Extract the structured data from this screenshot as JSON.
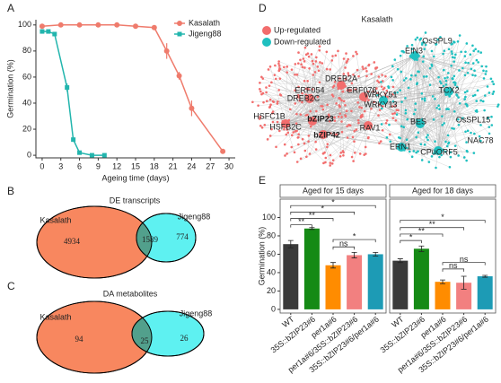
{
  "chart_data": [
    {
      "type": "line",
      "panel": "A",
      "xlabel": "Ageing time (days)",
      "ylabel": "Germination (%)",
      "xlim": [
        -1,
        31
      ],
      "xticks": [
        0,
        3,
        6,
        9,
        12,
        15,
        18,
        21,
        24,
        27,
        30
      ],
      "ylim": [
        -2,
        104
      ],
      "yticks": [
        0,
        20,
        40,
        60,
        80,
        100
      ],
      "legend": "top-right",
      "series": [
        {
          "name": "Kasalath",
          "color": "#ef7b6c",
          "marker": "circle",
          "x": [
            0,
            3,
            6,
            9,
            12,
            15,
            18,
            20,
            22,
            24,
            29
          ],
          "values": [
            99,
            100,
            100,
            100,
            100,
            99,
            98,
            80,
            61,
            36,
            3
          ],
          "errors": [
            null,
            null,
            null,
            null,
            null,
            null,
            null,
            6,
            3,
            6,
            null
          ]
        },
        {
          "name": "Jigeng88",
          "color": "#22b5ad",
          "marker": "square",
          "x": [
            0,
            1,
            2,
            4,
            5,
            6,
            8,
            10
          ],
          "values": [
            95,
            95,
            93,
            52,
            12,
            2,
            0,
            0
          ],
          "errors": [
            null,
            null,
            null,
            3,
            null,
            null,
            null,
            null
          ]
        }
      ]
    },
    {
      "type": "venn",
      "panel": "B",
      "title": "DE transcripts",
      "sets": [
        {
          "name": "Kasalath",
          "only": 4934,
          "color": "#f8875f"
        },
        {
          "name": "Jigeng88",
          "only": 774,
          "color": "#5ef1f1"
        }
      ],
      "overlap": 1589,
      "overlap_color": "#52a08c"
    },
    {
      "type": "venn",
      "panel": "C",
      "title": "DA metabolites",
      "sets": [
        {
          "name": "Kasalath",
          "only": 94,
          "color": "#f8875f"
        },
        {
          "name": "Jigeng88",
          "only": 26,
          "color": "#5ef1f1"
        }
      ],
      "overlap": 25,
      "overlap_color": "#52a08c"
    },
    {
      "type": "bar",
      "panel": "E",
      "ylabel": "Germination (%)",
      "ylim": [
        -4,
        120
      ],
      "yticks": [
        0,
        20,
        40,
        60,
        80,
        100
      ],
      "categories": [
        "WT",
        "35S::bZIP23#6",
        "per1a#6",
        "per1a#6/35S::bZIP23#6",
        "35S::bZIP23#6/per1a#6"
      ],
      "colors": [
        "#3a3a3a",
        "#158a15",
        "#ff8c00",
        "#f28080",
        "#1d9bb5"
      ],
      "facets": [
        {
          "title": "Aged for 15 days",
          "values": [
            71,
            88,
            48,
            59,
            60
          ],
          "errors": [
            4,
            1,
            3,
            3,
            2
          ],
          "significance": [
            "**",
            "**",
            "*",
            "*",
            "ns",
            "*"
          ]
        },
        {
          "title": "Aged for 18 days",
          "values": [
            53,
            66,
            30,
            29,
            36
          ],
          "errors": [
            2,
            3,
            2,
            7,
            1
          ],
          "significance": [
            "*",
            "**",
            "**",
            "*",
            "ns",
            "ns"
          ]
        }
      ]
    }
  ],
  "network": {
    "panel": "D",
    "title": "Kasalath",
    "legend": [
      {
        "name": "Up-regulated",
        "color": "#f26d6d"
      },
      {
        "name": "Down-regulated",
        "color": "#1fc0c0"
      }
    ],
    "up_nodes": [
      "DREB2A",
      "ERF054",
      "ERF076",
      "DREB2C",
      "HSFC1B",
      "bZIP23",
      "HSFB2C",
      "bZIP42",
      "RAV1"
    ],
    "down_nodes": [
      "OsSPL9",
      "EIN3",
      "WRKY51",
      "WRKY13",
      "TCX2",
      "BES",
      "OsSPL15",
      "ERN1",
      "CPuORF5",
      "NAC78"
    ]
  }
}
